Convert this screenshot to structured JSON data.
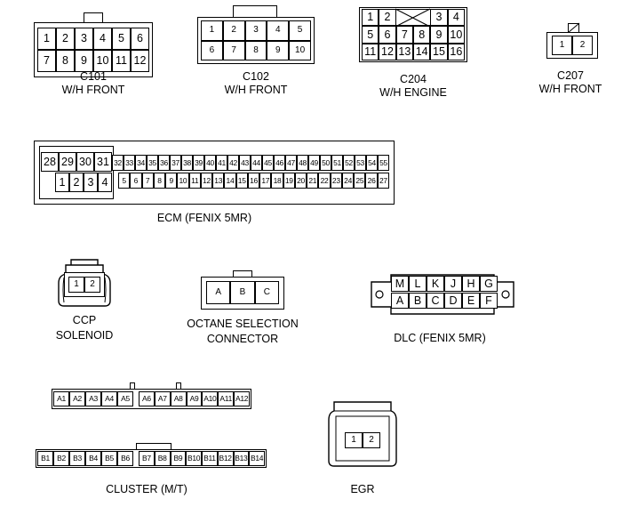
{
  "c101": {
    "name": "C101",
    "sub": "W/H FRONT",
    "pins": [
      "1",
      "2",
      "3",
      "4",
      "5",
      "6",
      "7",
      "8",
      "9",
      "10",
      "11",
      "12"
    ]
  },
  "c102": {
    "name": "C102",
    "sub": "W/H FRONT",
    "pins": [
      "1",
      "2",
      "3",
      "4",
      "5",
      "6",
      "7",
      "8",
      "9",
      "10"
    ]
  },
  "c204": {
    "name": "C204",
    "sub": "W/H ENGINE",
    "pins": [
      "1",
      "2",
      "",
      "",
      "3",
      "4",
      "5",
      "6",
      "7",
      "8",
      "9",
      "10",
      "11",
      "12",
      "13",
      "14",
      "15",
      "16"
    ]
  },
  "c207": {
    "name": "C207",
    "sub": "W/H FRONT",
    "pins": [
      "1",
      "2"
    ]
  },
  "ecm": {
    "label": "ECM (FENIX 5MR)",
    "big_top": [
      "28",
      "29",
      "30",
      "31"
    ],
    "big_bottom": [
      "1",
      "2",
      "3",
      "4"
    ],
    "small_top": [
      "32",
      "33",
      "34",
      "35",
      "36",
      "37",
      "38",
      "39",
      "40",
      "41",
      "42",
      "43",
      "44",
      "45",
      "46",
      "47",
      "48",
      "49",
      "50",
      "51",
      "52",
      "53",
      "54",
      "55"
    ],
    "small_bottom": [
      "5",
      "6",
      "7",
      "8",
      "9",
      "10",
      "11",
      "12",
      "13",
      "14",
      "15",
      "16",
      "17",
      "18",
      "19",
      "20",
      "21",
      "22",
      "23",
      "24",
      "25",
      "26",
      "27"
    ]
  },
  "ccp": {
    "label1": "CCP",
    "label2": "SOLENOID",
    "pins": [
      "1",
      "2"
    ]
  },
  "octane": {
    "label1": "OCTANE SELECTION",
    "label2": "CONNECTOR",
    "pins": [
      "A",
      "B",
      "C"
    ]
  },
  "dlc": {
    "label": "DLC (FENIX 5MR)",
    "top": [
      "M",
      "L",
      "K",
      "J",
      "H",
      "G"
    ],
    "bottom": [
      "A",
      "B",
      "C",
      "D",
      "E",
      "F"
    ]
  },
  "cluster": {
    "label": "CLUSTER (M/T)",
    "a_left": [
      "A1",
      "A2",
      "A3",
      "A4",
      "A5"
    ],
    "a_right": [
      "A6",
      "A7",
      "A8",
      "A9",
      "A10",
      "A11",
      "A12"
    ],
    "b_left": [
      "B1",
      "B2",
      "B3",
      "B4",
      "B5",
      "B6"
    ],
    "b_right": [
      "B7",
      "B8",
      "B9",
      "B10",
      "B11",
      "B12",
      "B13",
      "B14"
    ]
  },
  "egr": {
    "label": "EGR",
    "pins": [
      "1",
      "2"
    ]
  }
}
